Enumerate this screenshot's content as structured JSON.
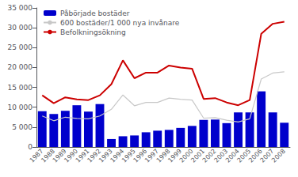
{
  "chart_data": {
    "type": "bar",
    "categories": [
      "1987",
      "1988",
      "1989",
      "1990",
      "1991",
      "1992",
      "1993",
      "1994",
      "1995",
      "1996",
      "1997",
      "1998",
      "1999",
      "2000",
      "2001",
      "2002",
      "2003",
      "2004",
      "2005",
      "2006",
      "2007",
      "2008"
    ],
    "series": [
      {
        "name": "Påbörjade bostäder",
        "type": "bar",
        "color": "#0000cc",
        "values": [
          9000,
          8300,
          9100,
          10500,
          8900,
          10800,
          2000,
          2700,
          2900,
          3700,
          4100,
          4300,
          4800,
          5300,
          6800,
          6900,
          6000,
          8700,
          8700,
          14000,
          8700,
          6100
        ]
      },
      {
        "name": "600 bostäder/1 000 nya invånare",
        "type": "line",
        "color": "#c8c8c8",
        "values": [
          7800,
          6600,
          7500,
          7200,
          7080,
          7800,
          9480,
          13080,
          10380,
          11220,
          11220,
          12300,
          12000,
          11820,
          7260,
          7380,
          6720,
          6300,
          7080,
          17100,
          18600,
          18900
        ]
      },
      {
        "name": "Befolkningsökning",
        "type": "line",
        "color": "#cc0000",
        "values": [
          13000,
          11000,
          12500,
          12000,
          11800,
          13000,
          15800,
          21800,
          17300,
          18700,
          18700,
          20500,
          20000,
          19700,
          12100,
          12300,
          11200,
          10500,
          11800,
          28500,
          31000,
          31500
        ]
      }
    ],
    "ylim": [
      0,
      35000
    ],
    "yticks": [
      0,
      {
        "value": 5000,
        "label": "5 000"
      },
      {
        "value": 10000,
        "label": "10 000"
      },
      {
        "value": 15000,
        "label": "15 000"
      },
      {
        "value": 20000,
        "label": "20 000"
      },
      {
        "value": 25000,
        "label": "25 000"
      },
      {
        "value": 30000,
        "label": "30 000"
      },
      {
        "value": 35000,
        "label": "35 000"
      }
    ],
    "grid": false,
    "legend": "upper left"
  }
}
